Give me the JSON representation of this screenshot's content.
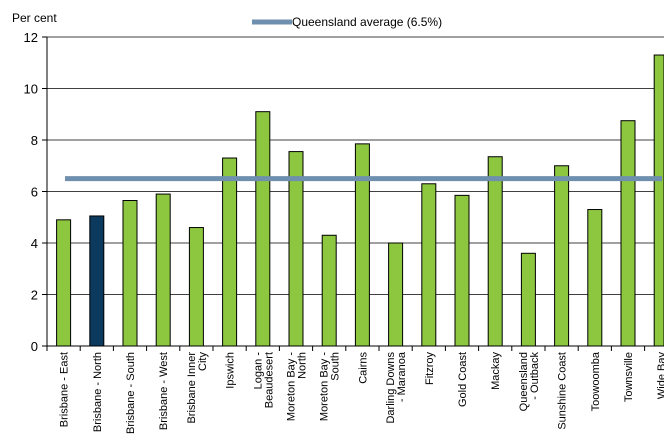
{
  "chart_data": {
    "type": "bar",
    "ylabel": "Per cent",
    "ylim": [
      0,
      12
    ],
    "yticks": [
      0,
      2,
      4,
      6,
      8,
      10,
      12
    ],
    "grid": true,
    "legend_position": "top",
    "categories": [
      "Brisbane - East",
      "Brisbane - North",
      "Brisbane - South",
      "Brisbane - West",
      "Brisbane Inner City",
      "Ipswich",
      "Logan - Beaudesert",
      "Moreton Bay - North",
      "Moreton Bay - South",
      "Cairns",
      "Darling Downs - Maranoa",
      "Fitzroy",
      "Gold Coast",
      "Mackay",
      "Queensland - Outback",
      "Sunshine Coast",
      "Toowoomba",
      "Townsville",
      "Wide Bay"
    ],
    "category_label_lines": [
      [
        "Brisbane - East"
      ],
      [
        "Brisbane - North"
      ],
      [
        "Brisbane - South"
      ],
      [
        "Brisbane - West"
      ],
      [
        "Brisbane Inner",
        "City"
      ],
      [
        "Ipswich"
      ],
      [
        "Logan -",
        "Beaudesert"
      ],
      [
        "Moreton Bay -",
        "North"
      ],
      [
        "Moreton Bay -",
        "South"
      ],
      [
        "Cairns"
      ],
      [
        "Darling Downs",
        "- Maranoa"
      ],
      [
        "Fitzroy"
      ],
      [
        "Gold Coast"
      ],
      [
        "Mackay"
      ],
      [
        "Queensland",
        "- Outback"
      ],
      [
        "Sunshine Coast"
      ],
      [
        "Toowoomba"
      ],
      [
        "Townsville"
      ],
      [
        "Wide Bay"
      ]
    ],
    "values": [
      4.9,
      5.05,
      5.65,
      5.9,
      4.6,
      7.3,
      9.1,
      7.55,
      4.3,
      7.85,
      4.0,
      6.3,
      5.85,
      7.35,
      3.6,
      7.0,
      5.3,
      8.75,
      11.3
    ],
    "highlight_index": 1,
    "reference_line": {
      "name": "Queensland average (6.5%)",
      "value": 6.5
    },
    "colors": {
      "bar": "#8dc63f",
      "highlight": "#0b3a5e",
      "bar_edge": "#000000",
      "line": "#6f8fae",
      "grid": "#000000"
    }
  }
}
